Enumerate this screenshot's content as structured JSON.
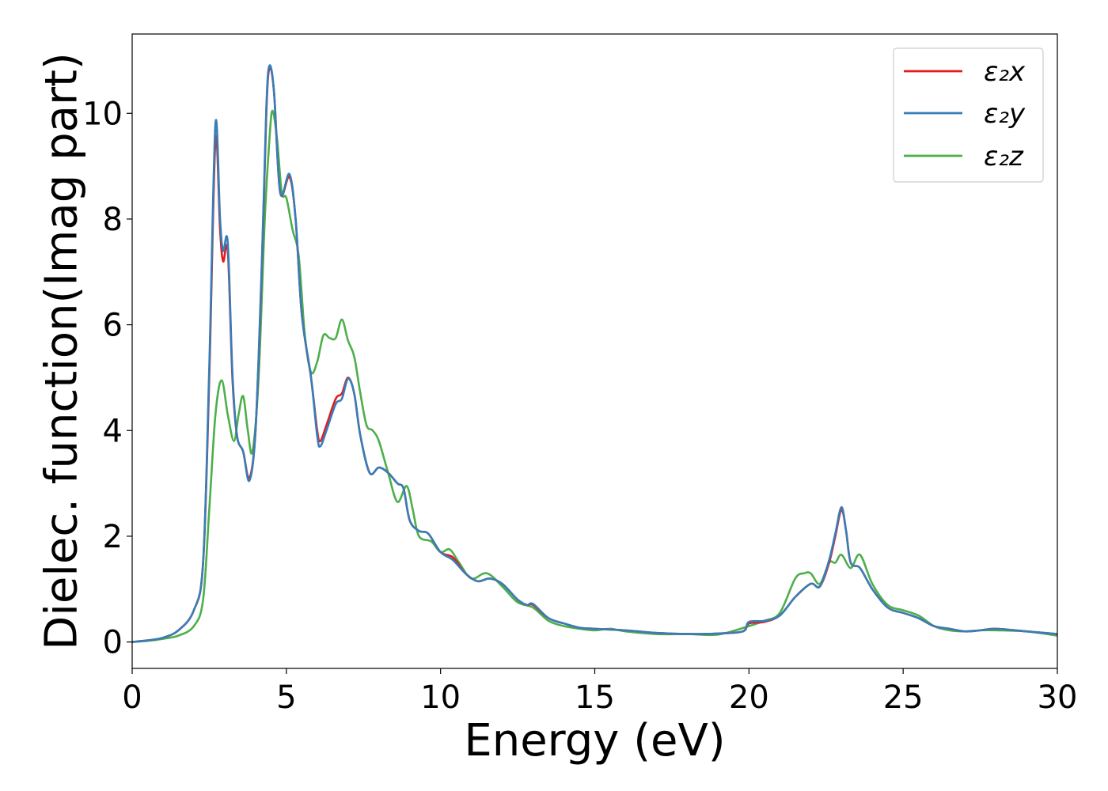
{
  "chart_data": {
    "type": "line",
    "xlabel": "Energy (eV)",
    "ylabel": "Dielec. function(Imag part)",
    "xlim": [
      0,
      30
    ],
    "ylim": [
      -0.5,
      11.5
    ],
    "xticks": [
      0,
      5,
      10,
      15,
      20,
      25,
      30
    ],
    "yticks": [
      0,
      2,
      4,
      6,
      8,
      10
    ],
    "xtick_labels": [
      "0",
      "5",
      "10",
      "15",
      "20",
      "25",
      "30"
    ],
    "ytick_labels": [
      "0",
      "2",
      "4",
      "6",
      "8",
      "10"
    ],
    "grid": false,
    "legend_position": "top-right",
    "series": [
      {
        "name": "ε₂x",
        "color": "#e41a1c",
        "points": [
          [
            0,
            0
          ],
          [
            0.5,
            0.03
          ],
          [
            1.0,
            0.08
          ],
          [
            1.5,
            0.22
          ],
          [
            2.0,
            0.6
          ],
          [
            2.3,
            1.5
          ],
          [
            2.5,
            5.0
          ],
          [
            2.7,
            9.5
          ],
          [
            2.85,
            7.8
          ],
          [
            2.95,
            7.2
          ],
          [
            3.1,
            7.4
          ],
          [
            3.25,
            5.0
          ],
          [
            3.4,
            3.9
          ],
          [
            3.6,
            3.6
          ],
          [
            3.8,
            3.1
          ],
          [
            4.0,
            4.0
          ],
          [
            4.2,
            7.0
          ],
          [
            4.35,
            10.0
          ],
          [
            4.45,
            10.85
          ],
          [
            4.6,
            10.4
          ],
          [
            4.8,
            8.5
          ],
          [
            5.1,
            8.8
          ],
          [
            5.3,
            8.0
          ],
          [
            5.5,
            6.2
          ],
          [
            5.8,
            5.0
          ],
          [
            6.0,
            4.0
          ],
          [
            6.1,
            3.8
          ],
          [
            6.3,
            4.1
          ],
          [
            6.6,
            4.6
          ],
          [
            6.8,
            4.7
          ],
          [
            7.0,
            5.0
          ],
          [
            7.2,
            4.7
          ],
          [
            7.4,
            3.9
          ],
          [
            7.7,
            3.2
          ],
          [
            8.0,
            3.3
          ],
          [
            8.3,
            3.2
          ],
          [
            8.6,
            3.0
          ],
          [
            8.8,
            2.9
          ],
          [
            9.0,
            2.3
          ],
          [
            9.3,
            2.1
          ],
          [
            9.6,
            2.05
          ],
          [
            10.0,
            1.7
          ],
          [
            10.4,
            1.6
          ],
          [
            10.8,
            1.3
          ],
          [
            11.2,
            1.15
          ],
          [
            11.6,
            1.2
          ],
          [
            12.0,
            1.1
          ],
          [
            12.5,
            0.8
          ],
          [
            12.8,
            0.7
          ],
          [
            13.0,
            0.7
          ],
          [
            13.5,
            0.45
          ],
          [
            14.0,
            0.35
          ],
          [
            14.5,
            0.27
          ],
          [
            15.0,
            0.25
          ],
          [
            16.0,
            0.22
          ],
          [
            17.0,
            0.17
          ],
          [
            18.0,
            0.15
          ],
          [
            19.0,
            0.16
          ],
          [
            19.8,
            0.2
          ],
          [
            20.0,
            0.35
          ],
          [
            20.5,
            0.38
          ],
          [
            21.0,
            0.5
          ],
          [
            21.5,
            0.85
          ],
          [
            22.0,
            1.1
          ],
          [
            22.3,
            1.05
          ],
          [
            22.6,
            1.5
          ],
          [
            22.8,
            2.0
          ],
          [
            23.0,
            2.5
          ],
          [
            23.15,
            2.1
          ],
          [
            23.3,
            1.5
          ],
          [
            23.6,
            1.4
          ],
          [
            24.0,
            1.0
          ],
          [
            24.5,
            0.65
          ],
          [
            25.0,
            0.55
          ],
          [
            25.5,
            0.45
          ],
          [
            26.0,
            0.3
          ],
          [
            26.5,
            0.25
          ],
          [
            27.0,
            0.2
          ],
          [
            27.5,
            0.22
          ],
          [
            28.0,
            0.25
          ],
          [
            29.0,
            0.2
          ],
          [
            30.0,
            0.15
          ]
        ]
      },
      {
        "name": "ε₂y",
        "color": "#377eb8",
        "points": [
          [
            0,
            0
          ],
          [
            0.5,
            0.03
          ],
          [
            1.0,
            0.08
          ],
          [
            1.5,
            0.22
          ],
          [
            2.0,
            0.6
          ],
          [
            2.3,
            1.5
          ],
          [
            2.5,
            5.2
          ],
          [
            2.7,
            9.8
          ],
          [
            2.85,
            8.0
          ],
          [
            2.95,
            7.4
          ],
          [
            3.1,
            7.55
          ],
          [
            3.25,
            5.1
          ],
          [
            3.4,
            3.9
          ],
          [
            3.6,
            3.6
          ],
          [
            3.8,
            3.05
          ],
          [
            4.0,
            4.0
          ],
          [
            4.2,
            7.1
          ],
          [
            4.35,
            10.1
          ],
          [
            4.45,
            10.9
          ],
          [
            4.6,
            10.4
          ],
          [
            4.8,
            8.5
          ],
          [
            5.1,
            8.85
          ],
          [
            5.3,
            8.0
          ],
          [
            5.5,
            6.2
          ],
          [
            5.8,
            5.0
          ],
          [
            6.0,
            3.9
          ],
          [
            6.1,
            3.7
          ],
          [
            6.3,
            4.0
          ],
          [
            6.6,
            4.5
          ],
          [
            6.8,
            4.6
          ],
          [
            7.0,
            4.98
          ],
          [
            7.2,
            4.7
          ],
          [
            7.4,
            3.9
          ],
          [
            7.7,
            3.2
          ],
          [
            8.0,
            3.3
          ],
          [
            8.3,
            3.2
          ],
          [
            8.6,
            3.0
          ],
          [
            8.8,
            2.9
          ],
          [
            9.0,
            2.3
          ],
          [
            9.3,
            2.1
          ],
          [
            9.6,
            2.05
          ],
          [
            10.0,
            1.7
          ],
          [
            10.4,
            1.55
          ],
          [
            10.8,
            1.3
          ],
          [
            11.2,
            1.15
          ],
          [
            11.6,
            1.2
          ],
          [
            12.0,
            1.1
          ],
          [
            12.5,
            0.8
          ],
          [
            12.8,
            0.7
          ],
          [
            13.0,
            0.72
          ],
          [
            13.5,
            0.45
          ],
          [
            14.0,
            0.35
          ],
          [
            14.5,
            0.27
          ],
          [
            15.0,
            0.25
          ],
          [
            16.0,
            0.22
          ],
          [
            17.0,
            0.17
          ],
          [
            18.0,
            0.15
          ],
          [
            19.0,
            0.16
          ],
          [
            19.8,
            0.2
          ],
          [
            20.0,
            0.38
          ],
          [
            20.5,
            0.4
          ],
          [
            21.0,
            0.5
          ],
          [
            21.5,
            0.85
          ],
          [
            22.0,
            1.1
          ],
          [
            22.3,
            1.05
          ],
          [
            22.6,
            1.55
          ],
          [
            22.8,
            2.05
          ],
          [
            23.0,
            2.55
          ],
          [
            23.15,
            2.1
          ],
          [
            23.3,
            1.5
          ],
          [
            23.6,
            1.4
          ],
          [
            24.0,
            1.0
          ],
          [
            24.5,
            0.65
          ],
          [
            25.0,
            0.55
          ],
          [
            25.5,
            0.45
          ],
          [
            26.0,
            0.3
          ],
          [
            26.5,
            0.25
          ],
          [
            27.0,
            0.2
          ],
          [
            27.5,
            0.22
          ],
          [
            28.0,
            0.25
          ],
          [
            29.0,
            0.2
          ],
          [
            30.0,
            0.15
          ]
        ]
      },
      {
        "name": "ε₂z",
        "color": "#4daf4a",
        "points": [
          [
            0,
            0
          ],
          [
            0.5,
            0.02
          ],
          [
            1.0,
            0.06
          ],
          [
            1.5,
            0.12
          ],
          [
            2.0,
            0.3
          ],
          [
            2.3,
            0.8
          ],
          [
            2.5,
            2.5
          ],
          [
            2.7,
            4.3
          ],
          [
            2.9,
            4.95
          ],
          [
            3.1,
            4.3
          ],
          [
            3.3,
            3.8
          ],
          [
            3.45,
            4.3
          ],
          [
            3.6,
            4.65
          ],
          [
            3.75,
            4.0
          ],
          [
            3.9,
            3.6
          ],
          [
            4.1,
            5.0
          ],
          [
            4.3,
            8.0
          ],
          [
            4.45,
            9.5
          ],
          [
            4.55,
            10.05
          ],
          [
            4.7,
            9.5
          ],
          [
            4.85,
            8.5
          ],
          [
            5.0,
            8.4
          ],
          [
            5.2,
            7.8
          ],
          [
            5.4,
            7.3
          ],
          [
            5.6,
            5.8
          ],
          [
            5.8,
            5.1
          ],
          [
            6.0,
            5.3
          ],
          [
            6.2,
            5.8
          ],
          [
            6.4,
            5.75
          ],
          [
            6.6,
            5.75
          ],
          [
            6.8,
            6.1
          ],
          [
            7.0,
            5.7
          ],
          [
            7.2,
            5.4
          ],
          [
            7.4,
            4.7
          ],
          [
            7.6,
            4.1
          ],
          [
            7.8,
            4.0
          ],
          [
            8.0,
            3.8
          ],
          [
            8.3,
            3.2
          ],
          [
            8.6,
            2.65
          ],
          [
            8.9,
            2.95
          ],
          [
            9.1,
            2.5
          ],
          [
            9.3,
            2.0
          ],
          [
            9.7,
            1.9
          ],
          [
            10.0,
            1.7
          ],
          [
            10.3,
            1.75
          ],
          [
            10.6,
            1.5
          ],
          [
            11.0,
            1.2
          ],
          [
            11.5,
            1.3
          ],
          [
            12.0,
            1.05
          ],
          [
            12.5,
            0.75
          ],
          [
            13.0,
            0.65
          ],
          [
            13.5,
            0.4
          ],
          [
            14.0,
            0.3
          ],
          [
            14.5,
            0.25
          ],
          [
            15.0,
            0.22
          ],
          [
            15.5,
            0.25
          ],
          [
            16.0,
            0.2
          ],
          [
            17.0,
            0.15
          ],
          [
            18.0,
            0.15
          ],
          [
            19.0,
            0.14
          ],
          [
            20.0,
            0.3
          ],
          [
            20.5,
            0.4
          ],
          [
            21.0,
            0.55
          ],
          [
            21.5,
            1.2
          ],
          [
            21.8,
            1.3
          ],
          [
            22.0,
            1.3
          ],
          [
            22.3,
            1.1
          ],
          [
            22.6,
            1.5
          ],
          [
            22.8,
            1.5
          ],
          [
            23.0,
            1.65
          ],
          [
            23.3,
            1.4
          ],
          [
            23.6,
            1.65
          ],
          [
            24.0,
            1.1
          ],
          [
            24.5,
            0.7
          ],
          [
            25.0,
            0.6
          ],
          [
            25.5,
            0.5
          ],
          [
            26.0,
            0.3
          ],
          [
            26.5,
            0.22
          ],
          [
            27.0,
            0.2
          ],
          [
            27.5,
            0.22
          ],
          [
            28.0,
            0.22
          ],
          [
            29.0,
            0.2
          ],
          [
            30.0,
            0.12
          ]
        ]
      }
    ]
  }
}
